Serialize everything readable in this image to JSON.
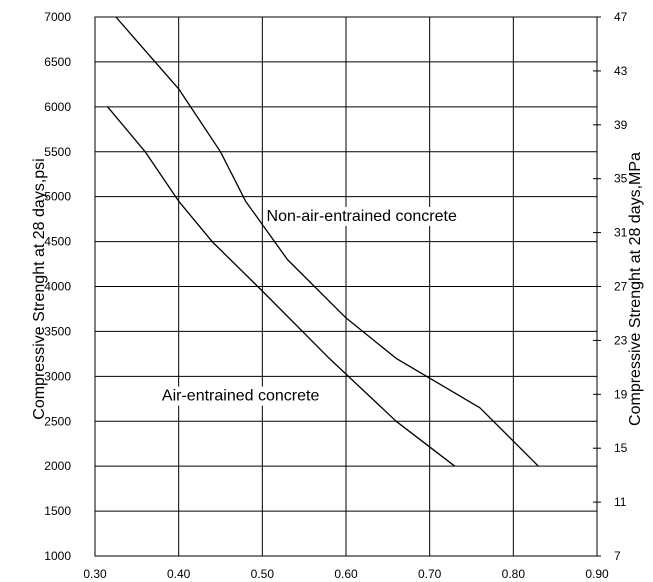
{
  "chart_data": {
    "type": "line",
    "title": "",
    "xlabel": "",
    "ylabel": "Compressive Strenght at 28 days,psi",
    "y2label": "Compressive Strenght at 28 days,MPa",
    "xlim": [
      0.3,
      0.9
    ],
    "ylim": [
      1000,
      7000
    ],
    "y2lim": [
      7,
      47
    ],
    "x_ticks": [
      "0.30",
      "0.40",
      "0.50",
      "0.60",
      "0.70",
      "0.80",
      "0.90"
    ],
    "y_ticks": [
      "1000",
      "1500",
      "2000",
      "2500",
      "3000",
      "3500",
      "4000",
      "4500",
      "5000",
      "5500",
      "6000",
      "6500",
      "7000"
    ],
    "y2_ticks": [
      "7",
      "11",
      "15",
      "19",
      "23",
      "27",
      "31",
      "35",
      "39",
      "43",
      "47"
    ],
    "grid": true,
    "series": [
      {
        "label": "Non-air-entrained concrete",
        "x": [
          0.325,
          0.4,
          0.45,
          0.48,
          0.53,
          0.6,
          0.66,
          0.76,
          0.83
        ],
        "y": [
          7000,
          6200,
          5500,
          4950,
          4300,
          3650,
          3200,
          2650,
          2000
        ]
      },
      {
        "label": "Air-entrained concrete",
        "x": [
          0.315,
          0.36,
          0.4,
          0.44,
          0.5,
          0.58,
          0.66,
          0.73
        ],
        "y": [
          6000,
          5500,
          4950,
          4500,
          3950,
          3200,
          2500,
          2000
        ]
      }
    ],
    "annotations": [
      {
        "text": "Non-air-entrained concrete",
        "x": 0.505,
        "y": 4730
      },
      {
        "text": "Air-entrained concrete",
        "x": 0.38,
        "y": 2730
      }
    ]
  }
}
